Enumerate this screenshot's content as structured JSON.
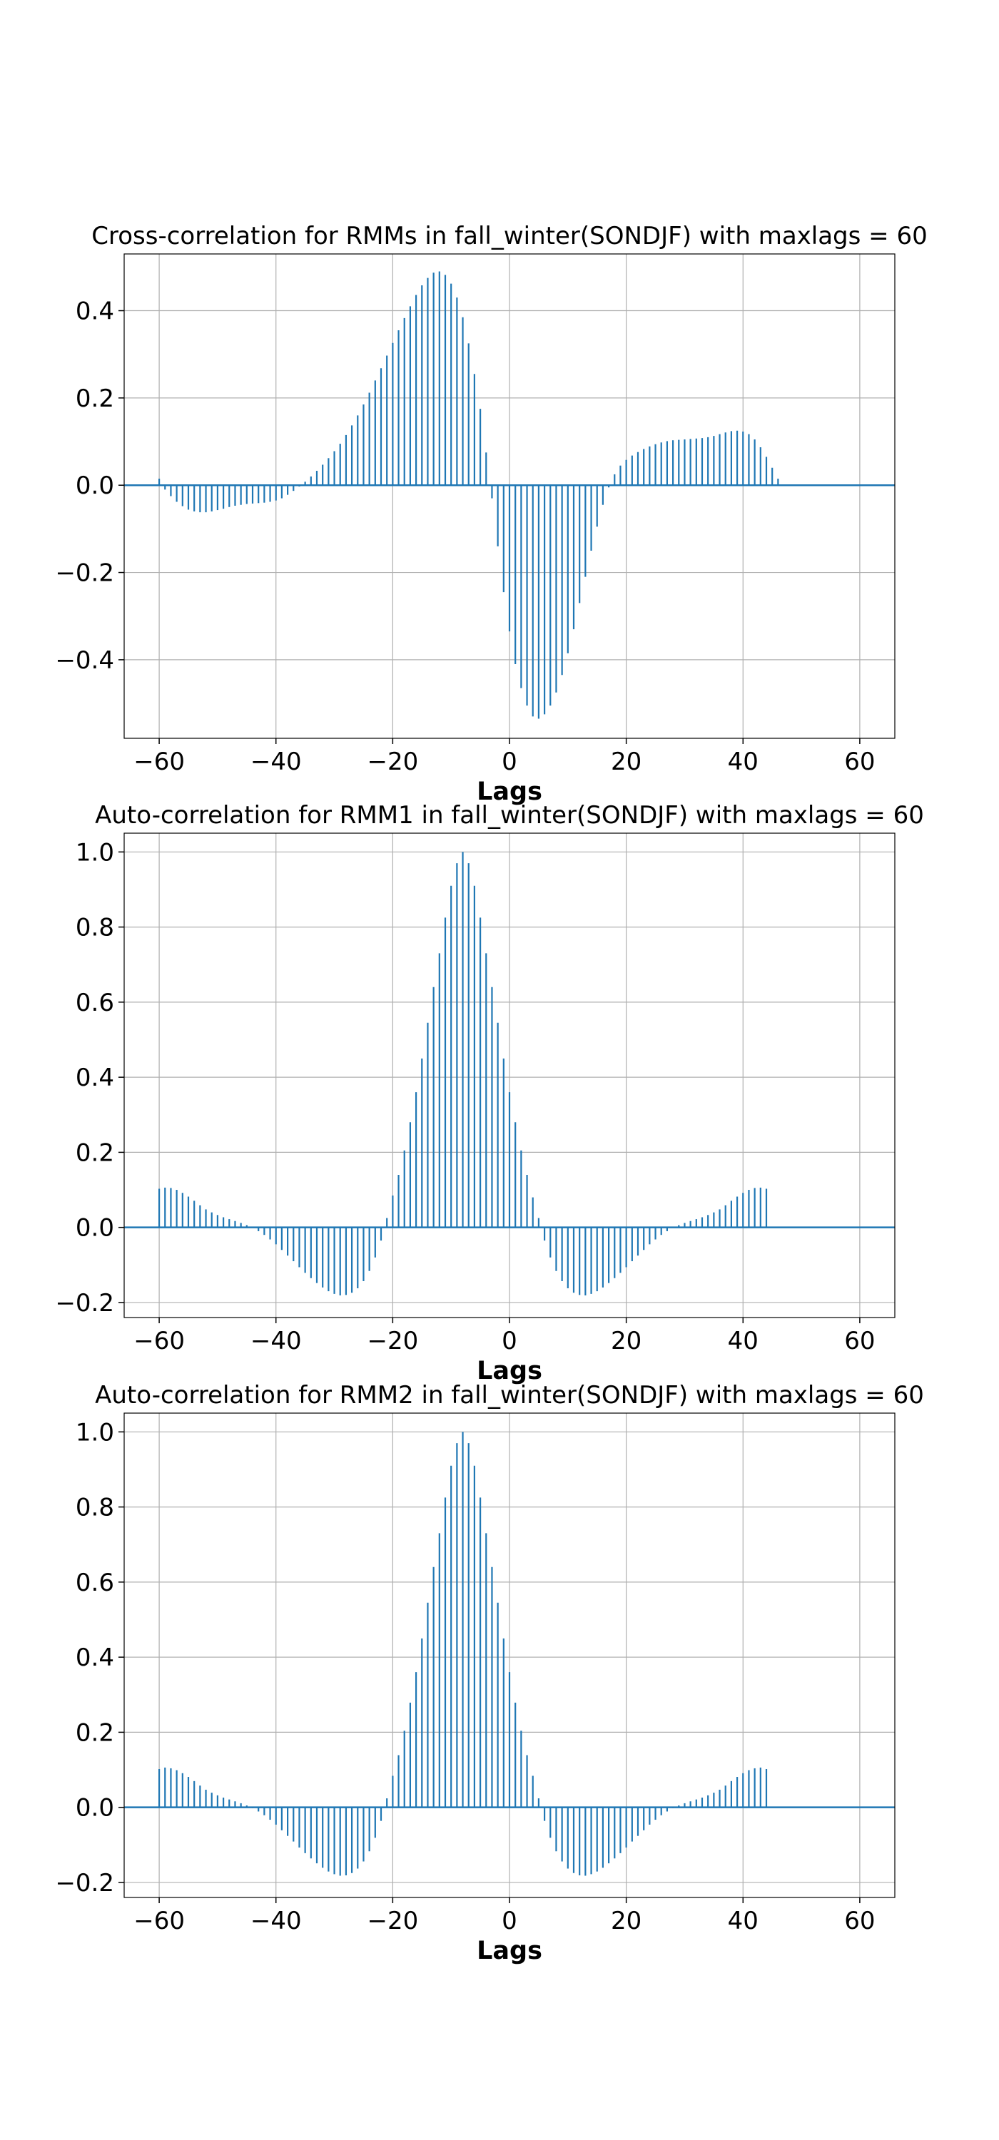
{
  "figure": {
    "background": "#ffffff",
    "stem_color": "#1f77b4",
    "grid_color": "#b0b0b0"
  },
  "chart_data": [
    {
      "type": "stem",
      "title": "Cross-correlation for RMMs in fall_winter(SONDJF) with maxlags = 60",
      "xlabel": "Lags",
      "ylabel": "",
      "xlim": [
        -66,
        66
      ],
      "ylim": [
        -0.58,
        0.53
      ],
      "xticks": [
        -60,
        -40,
        -20,
        0,
        20,
        40,
        60
      ],
      "yticks": [
        -0.4,
        -0.2,
        0.0,
        0.2,
        0.4
      ],
      "ytick_labels": [
        "−0.4",
        "−0.2",
        "0.0",
        "0.2",
        "0.4"
      ],
      "grid": true,
      "baseline": 0.0,
      "x": [
        -60,
        -59,
        -58,
        -57,
        -56,
        -55,
        -54,
        -53,
        -52,
        -51,
        -50,
        -49,
        -48,
        -47,
        -46,
        -45,
        -44,
        -43,
        -42,
        -41,
        -40,
        -39,
        -38,
        -37,
        -36,
        -35,
        -34,
        -33,
        -32,
        -31,
        -30,
        -29,
        -28,
        -27,
        -26,
        -25,
        -24,
        -23,
        -22,
        -21,
        -20,
        -19,
        -18,
        -17,
        -16,
        -15,
        -14,
        -13,
        -12,
        -11,
        -10,
        -9,
        -8,
        -7,
        -6,
        -5,
        -4,
        -3,
        -2,
        -1,
        0,
        1,
        2,
        3,
        4,
        5,
        6,
        7,
        8,
        9,
        10,
        11,
        12,
        13,
        14,
        15,
        16,
        17,
        18,
        19,
        20,
        21,
        22,
        23,
        24,
        25,
        26,
        27,
        28,
        29,
        30,
        31,
        32,
        33,
        34,
        35,
        36,
        37,
        38,
        39,
        40,
        41,
        42,
        43,
        44,
        45,
        46,
        47,
        48,
        49,
        50,
        51,
        52,
        53,
        54,
        55,
        56,
        57,
        58,
        59,
        60
      ],
      "values": [
        0.015,
        -0.01,
        -0.025,
        -0.038,
        -0.048,
        -0.056,
        -0.06,
        -0.062,
        -0.062,
        -0.06,
        -0.057,
        -0.054,
        -0.05,
        -0.047,
        -0.045,
        -0.043,
        -0.042,
        -0.041,
        -0.04,
        -0.038,
        -0.035,
        -0.03,
        -0.022,
        -0.013,
        -0.003,
        0.008,
        0.02,
        0.033,
        0.047,
        0.062,
        0.078,
        0.095,
        0.115,
        0.137,
        0.16,
        0.185,
        0.212,
        0.24,
        0.268,
        0.297,
        0.326,
        0.355,
        0.383,
        0.41,
        0.436,
        0.458,
        0.475,
        0.487,
        0.49,
        0.482,
        0.462,
        0.43,
        0.385,
        0.325,
        0.255,
        0.175,
        0.075,
        -0.03,
        -0.14,
        -0.245,
        -0.335,
        -0.41,
        -0.465,
        -0.505,
        -0.53,
        -0.535,
        -0.525,
        -0.505,
        -0.475,
        -0.435,
        -0.385,
        -0.33,
        -0.27,
        -0.21,
        -0.15,
        -0.095,
        -0.045,
        -0.005,
        0.025,
        0.045,
        0.058,
        0.068,
        0.076,
        0.083,
        0.089,
        0.094,
        0.098,
        0.101,
        0.103,
        0.104,
        0.105,
        0.106,
        0.107,
        0.108,
        0.11,
        0.113,
        0.117,
        0.121,
        0.124,
        0.125,
        0.123,
        0.117,
        0.105,
        0.087,
        0.065,
        0.04,
        0.015,
        0.0,
        0.0,
        0.0,
        0.0,
        0.0,
        0.0,
        0.0,
        0.0,
        0.0,
        0.0,
        0.0,
        0.0,
        0.0,
        0.0
      ]
    },
    {
      "type": "stem",
      "title": "Auto-correlation for RMM1 in fall_winter(SONDJF) with maxlags = 60",
      "xlabel": "Lags",
      "ylabel": "",
      "xlim": [
        -66,
        66
      ],
      "ylim": [
        -0.24,
        1.05
      ],
      "xticks": [
        -60,
        -40,
        -20,
        0,
        20,
        40,
        60
      ],
      "yticks": [
        -0.2,
        0.0,
        0.2,
        0.4,
        0.6,
        0.8,
        1.0
      ],
      "ytick_labels": [
        "−0.2",
        "0.0",
        "0.2",
        "0.4",
        "0.6",
        "0.8",
        "1.0"
      ],
      "grid": true,
      "baseline": 0.0,
      "x": [
        -60,
        -59,
        -58,
        -57,
        -56,
        -55,
        -54,
        -53,
        -52,
        -51,
        -50,
        -49,
        -48,
        -47,
        -46,
        -45,
        -44,
        -43,
        -42,
        -41,
        -40,
        -39,
        -38,
        -37,
        -36,
        -35,
        -34,
        -33,
        -32,
        -31,
        -30,
        -29,
        -28,
        -27,
        -26,
        -25,
        -24,
        -23,
        -22,
        -21,
        -20,
        -19,
        -18,
        -17,
        -16,
        -15,
        -14,
        -13,
        -12,
        -11,
        -10,
        -9,
        -8,
        -7,
        -6,
        -5,
        -4,
        -3,
        -2,
        -1,
        0,
        1,
        2,
        3,
        4,
        5,
        6,
        7,
        8,
        9,
        10,
        11,
        12,
        13,
        14,
        15,
        16,
        17,
        18,
        19,
        20,
        21,
        22,
        23,
        24,
        25,
        26,
        27,
        28,
        29,
        30,
        31,
        32,
        33,
        34,
        35,
        36,
        37,
        38,
        39,
        40,
        41,
        42,
        43,
        44,
        45,
        46,
        47,
        48,
        49,
        50,
        51,
        52,
        53,
        54,
        55,
        56,
        57,
        58,
        59,
        60
      ],
      "values": [
        0.103,
        0.106,
        0.105,
        0.1,
        0.092,
        0.082,
        0.071,
        0.059,
        0.048,
        0.04,
        0.033,
        0.027,
        0.022,
        0.017,
        0.012,
        0.006,
        -0.001,
        -0.01,
        -0.02,
        -0.032,
        -0.045,
        -0.06,
        -0.075,
        -0.09,
        -0.106,
        -0.121,
        -0.135,
        -0.148,
        -0.16,
        -0.17,
        -0.177,
        -0.181,
        -0.18,
        -0.174,
        -0.162,
        -0.143,
        -0.116,
        -0.08,
        -0.035,
        0.025,
        0.085,
        0.14,
        0.205,
        0.28,
        0.36,
        0.45,
        0.545,
        0.64,
        0.73,
        0.825,
        0.91,
        0.97,
        1.0,
        0.97,
        0.91,
        0.825,
        0.73,
        0.64,
        0.545,
        0.45,
        0.36,
        0.28,
        0.205,
        0.14,
        0.08,
        0.025,
        -0.035,
        -0.08,
        -0.116,
        -0.143,
        -0.162,
        -0.174,
        -0.18,
        -0.181,
        -0.177,
        -0.17,
        -0.16,
        -0.148,
        -0.135,
        -0.121,
        -0.106,
        -0.09,
        -0.075,
        -0.06,
        -0.045,
        -0.032,
        -0.02,
        -0.01,
        -0.001,
        0.006,
        0.012,
        0.017,
        0.022,
        0.027,
        0.033,
        0.04,
        0.048,
        0.059,
        0.071,
        0.082,
        0.092,
        0.1,
        0.105,
        0.106,
        0.103,
        0.0,
        0.0,
        0.0,
        0.0,
        0.0,
        0.0,
        0.0,
        0.0,
        0.0,
        0.0,
        0.0,
        0.0,
        0.0,
        0.0,
        0.0,
        0.0
      ]
    },
    {
      "type": "stem",
      "title": "Auto-correlation for RMM2 in fall_winter(SONDJF) with maxlags = 60",
      "xlabel": "Lags",
      "ylabel": "",
      "xlim": [
        -66,
        66
      ],
      "ylim": [
        -0.24,
        1.05
      ],
      "xticks": [
        -60,
        -40,
        -20,
        0,
        20,
        40,
        60
      ],
      "yticks": [
        -0.2,
        0.0,
        0.2,
        0.4,
        0.6,
        0.8,
        1.0
      ],
      "ytick_labels": [
        "−0.2",
        "0.0",
        "0.2",
        "0.4",
        "0.6",
        "0.8",
        "1.0"
      ],
      "grid": true,
      "baseline": 0.0,
      "x": [
        -60,
        -59,
        -58,
        -57,
        -56,
        -55,
        -54,
        -53,
        -52,
        -51,
        -50,
        -49,
        -48,
        -47,
        -46,
        -45,
        -44,
        -43,
        -42,
        -41,
        -40,
        -39,
        -38,
        -37,
        -36,
        -35,
        -34,
        -33,
        -32,
        -31,
        -30,
        -29,
        -28,
        -27,
        -26,
        -25,
        -24,
        -23,
        -22,
        -21,
        -20,
        -19,
        -18,
        -17,
        -16,
        -15,
        -14,
        -13,
        -12,
        -11,
        -10,
        -9,
        -8,
        -7,
        -6,
        -5,
        -4,
        -3,
        -2,
        -1,
        0,
        1,
        2,
        3,
        4,
        5,
        6,
        7,
        8,
        9,
        10,
        11,
        12,
        13,
        14,
        15,
        16,
        17,
        18,
        19,
        20,
        21,
        22,
        23,
        24,
        25,
        26,
        27,
        28,
        29,
        30,
        31,
        32,
        33,
        34,
        35,
        36,
        37,
        38,
        39,
        40,
        41,
        42,
        43,
        44,
        45,
        46,
        47,
        48,
        49,
        50,
        51,
        52,
        53,
        54,
        55,
        56,
        57,
        58,
        59,
        60
      ],
      "values": [
        0.102,
        0.106,
        0.104,
        0.099,
        0.091,
        0.081,
        0.07,
        0.058,
        0.047,
        0.039,
        0.032,
        0.026,
        0.021,
        0.016,
        0.011,
        0.005,
        -0.002,
        -0.011,
        -0.021,
        -0.033,
        -0.046,
        -0.061,
        -0.076,
        -0.091,
        -0.107,
        -0.122,
        -0.136,
        -0.149,
        -0.161,
        -0.171,
        -0.178,
        -0.182,
        -0.181,
        -0.175,
        -0.163,
        -0.144,
        -0.117,
        -0.081,
        -0.036,
        0.024,
        0.084,
        0.139,
        0.204,
        0.279,
        0.36,
        0.45,
        0.545,
        0.64,
        0.73,
        0.825,
        0.91,
        0.97,
        1.0,
        0.97,
        0.91,
        0.825,
        0.73,
        0.64,
        0.545,
        0.45,
        0.36,
        0.279,
        0.204,
        0.139,
        0.084,
        0.024,
        -0.036,
        -0.081,
        -0.117,
        -0.144,
        -0.163,
        -0.175,
        -0.181,
        -0.182,
        -0.178,
        -0.171,
        -0.161,
        -0.149,
        -0.136,
        -0.122,
        -0.107,
        -0.091,
        -0.076,
        -0.061,
        -0.046,
        -0.033,
        -0.021,
        -0.011,
        -0.002,
        0.005,
        0.011,
        0.016,
        0.021,
        0.026,
        0.032,
        0.039,
        0.047,
        0.058,
        0.07,
        0.081,
        0.091,
        0.099,
        0.104,
        0.106,
        0.102,
        0.0,
        0.0,
        0.0,
        0.0,
        0.0,
        0.0,
        0.0,
        0.0,
        0.0,
        0.0,
        0.0,
        0.0,
        0.0,
        0.0,
        0.0,
        0.0
      ]
    }
  ]
}
